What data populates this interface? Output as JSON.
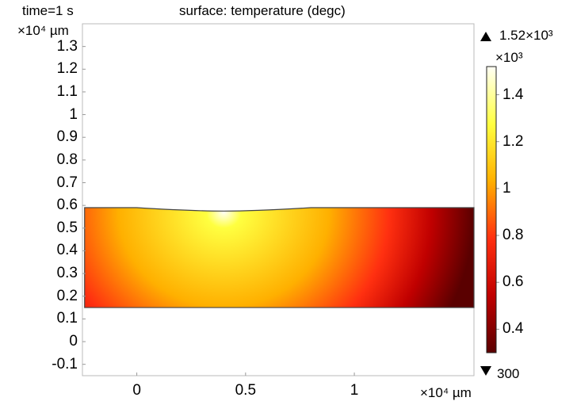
{
  "chart_data": {
    "type": "heatmap",
    "time_label": "time=1 s",
    "title": "surface: temperature (degc)",
    "y_unit_label": "×10⁴ µm",
    "x_unit_label": "×10⁴ µm",
    "x_ticks": [
      0,
      0.5,
      1
    ],
    "x_tick_labels": [
      "0",
      "0.5",
      "1"
    ],
    "y_ticks": [
      1.3,
      1.2,
      1.1,
      1,
      0.9,
      0.8,
      0.7,
      0.6,
      0.5,
      0.4,
      0.3,
      0.2,
      0.1,
      0,
      -0.1
    ],
    "y_tick_labels": [
      "1.3",
      "1.2",
      "1.1",
      "1",
      "0.9",
      "0.8",
      "0.7",
      "0.6",
      "0.5",
      "0.4",
      "0.3",
      "0.2",
      "0.1",
      "0",
      "-0.1"
    ],
    "xlim": [
      -0.25,
      1.55
    ],
    "ylim": [
      -0.15,
      1.4
    ],
    "domain": {
      "x_range": [
        -0.24,
        1.55
      ],
      "y_range": [
        0.15,
        0.59
      ],
      "top_dip_x": 0.4,
      "top_dip_y": 0.575
    },
    "hot_spot": {
      "x": 0.4,
      "y": 0.57,
      "value": 1520
    },
    "colorbar": {
      "max_label": "1.52×10³",
      "min_label": "300",
      "multiplier_label": "×10³",
      "tick_labels": [
        "1.4",
        "1.2",
        "1",
        "0.8",
        "0.6",
        "0.4"
      ],
      "tick_values": [
        1400,
        1200,
        1000,
        800,
        600,
        400
      ],
      "min": 300,
      "max": 1520,
      "stops": [
        "#fffff5",
        "#ffff40",
        "#ffb000",
        "#ff3010",
        "#c00000",
        "#5a0000"
      ]
    }
  }
}
